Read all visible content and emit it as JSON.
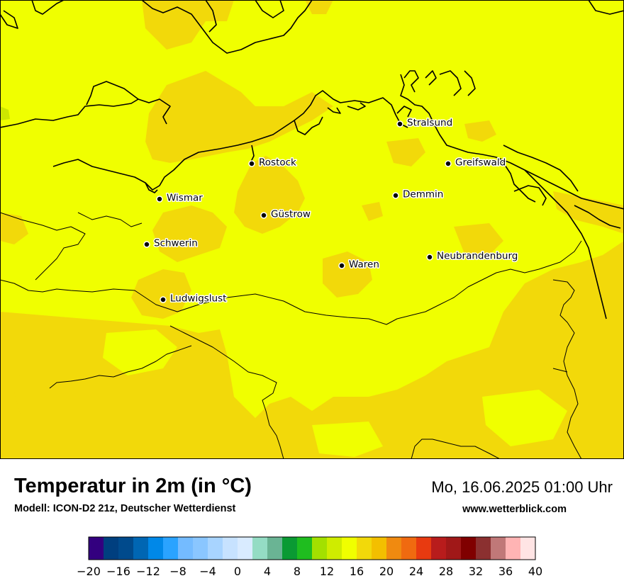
{
  "header": {
    "title": "Temperatur in 2m (in °C)",
    "subtitle": "Modell: ICON-D2 21z, Deutscher Wetterdienst",
    "datetime": "Mo, 16.06.2025 01:00 Uhr",
    "source": "www.wetterblick.com"
  },
  "map": {
    "cities": [
      {
        "name": "Stralsund"
      },
      {
        "name": "Rostock"
      },
      {
        "name": "Greifswald"
      },
      {
        "name": "Wismar"
      },
      {
        "name": "Demmin"
      },
      {
        "name": "Güstrow"
      },
      {
        "name": "Schwerin"
      },
      {
        "name": "Neubrandenburg"
      },
      {
        "name": "Waren"
      },
      {
        "name": "Ludwigslust"
      }
    ],
    "field_colors": {
      "warm_14_16": "#f0ff00",
      "warm_16_18": "#f2d90a",
      "cool_12_14": "#cde600"
    }
  },
  "colorbar": {
    "colors": [
      "#33007f",
      "#003f7f",
      "#004a8c",
      "#0066b3",
      "#0088e8",
      "#2aa3ff",
      "#74bbff",
      "#8ac6ff",
      "#a8d4ff",
      "#c7e2ff",
      "#d9ebff",
      "#94dcc4",
      "#6ab494",
      "#0a9a33",
      "#1fbd1f",
      "#a3e000",
      "#cfec00",
      "#f0ff00",
      "#f2d90a",
      "#f3bf00",
      "#f08a10",
      "#f06a10",
      "#e83a10",
      "#b81c1c",
      "#a01818",
      "#800000",
      "#8b3030",
      "#c07878",
      "#ffb4b4",
      "#ffe4e4"
    ],
    "tick_labels": [
      "−20",
      "−16",
      "−12",
      "−8",
      "−4",
      "0",
      "4",
      "8",
      "12",
      "16",
      "20",
      "24",
      "28",
      "32",
      "36",
      "40"
    ],
    "min": -20,
    "max": 40
  }
}
